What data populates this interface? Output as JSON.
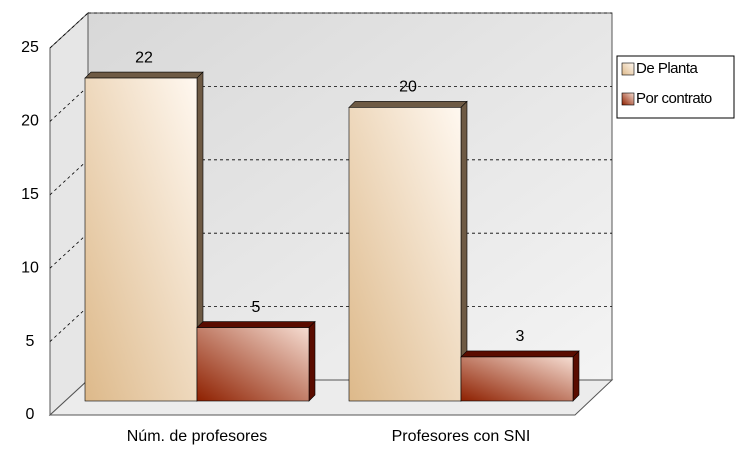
{
  "chart_data": {
    "type": "bar",
    "categories": [
      "Núm. de profesores",
      "Profesores con SNI"
    ],
    "series": [
      {
        "name": "De Planta",
        "color": "#e9cfa6",
        "values": [
          22,
          20
        ]
      },
      {
        "name": "Por contrato",
        "color": "#a0280f",
        "values": [
          5,
          3
        ]
      }
    ],
    "ylim": [
      0,
      25
    ],
    "yticks": [
      0,
      5,
      10,
      15,
      20,
      25
    ],
    "grid": true,
    "legend": "right"
  }
}
